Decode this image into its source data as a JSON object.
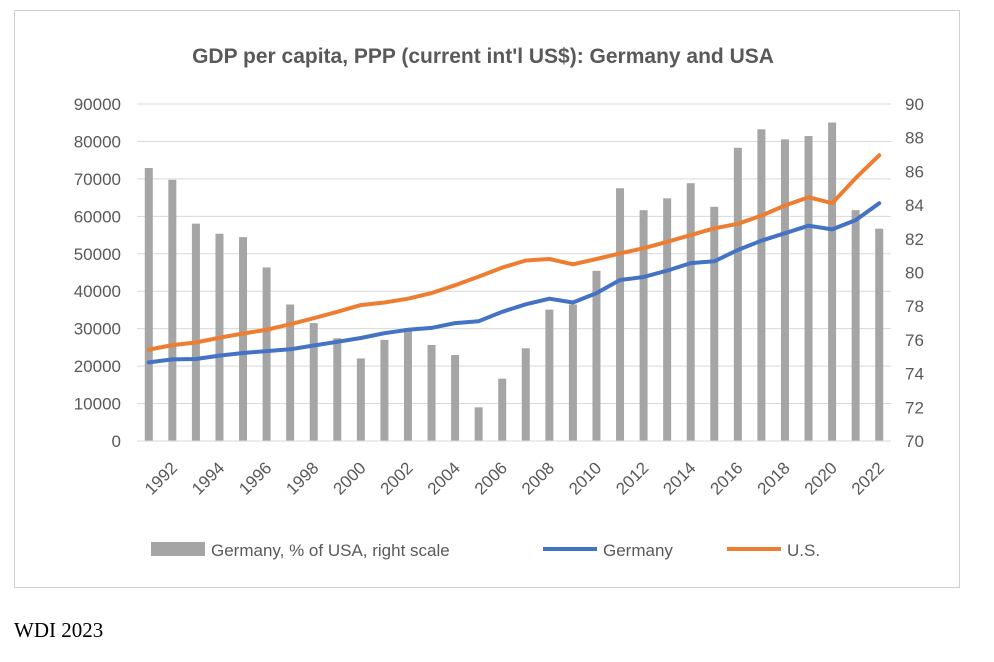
{
  "source_note": "WDI 2023",
  "chart_data": {
    "type": "bar+line",
    "title": "GDP per capita, PPP (current int'l US$): Germany and USA",
    "x": [
      1991,
      1992,
      1993,
      1994,
      1995,
      1996,
      1997,
      1998,
      1999,
      2000,
      2001,
      2002,
      2003,
      2004,
      2005,
      2006,
      2007,
      2008,
      2009,
      2010,
      2011,
      2012,
      2013,
      2014,
      2015,
      2016,
      2017,
      2018,
      2019,
      2020,
      2021,
      2022
    ],
    "x_tick_labels": [
      "1992",
      "1994",
      "1996",
      "1998",
      "2000",
      "2002",
      "2004",
      "2006",
      "2008",
      "2010",
      "2012",
      "2014",
      "2016",
      "2018",
      "2020",
      "2022"
    ],
    "y_left": {
      "ylim": [
        0,
        90000
      ],
      "ticks": [
        "0",
        "10000",
        "20000",
        "30000",
        "40000",
        "50000",
        "60000",
        "70000",
        "80000",
        "90000"
      ]
    },
    "y_right": {
      "ylim": [
        70,
        90
      ],
      "ticks": [
        "70",
        "72",
        "74",
        "76",
        "78",
        "80",
        "82",
        "84",
        "86",
        "88",
        "90"
      ]
    },
    "legend_position": "bottom",
    "series": [
      {
        "name": "Germany, % of USA, right scale",
        "kind": "bar",
        "axis": "right",
        "color": "#a5a5a5",
        "values": [
          86.2,
          85.5,
          82.9,
          82.3,
          82.1,
          80.3,
          78.1,
          77.0,
          76.1,
          74.9,
          76.0,
          76.7,
          75.7,
          75.1,
          72.0,
          73.7,
          75.5,
          77.8,
          78.1,
          80.1,
          85.0,
          83.7,
          84.4,
          85.3,
          83.9,
          87.4,
          88.5,
          87.9,
          88.1,
          88.9,
          83.7,
          82.6
        ]
      },
      {
        "name": "Germany",
        "kind": "line",
        "axis": "left",
        "color": "#4472c4",
        "values": [
          21000,
          21800,
          21900,
          22800,
          23500,
          24000,
          24500,
          25500,
          26500,
          27500,
          28800,
          29700,
          30200,
          31500,
          32000,
          34500,
          36500,
          38000,
          37000,
          39500,
          43000,
          43800,
          45500,
          47500,
          48000,
          51000,
          53500,
          55500,
          57500,
          56500,
          59000,
          63500
        ]
      },
      {
        "name": "U.S.",
        "kind": "line",
        "axis": "left",
        "color": "#ed7d31",
        "values": [
          24400,
          25600,
          26300,
          27600,
          28700,
          29700,
          31200,
          32800,
          34500,
          36300,
          37000,
          38000,
          39500,
          41600,
          43900,
          46300,
          48200,
          48600,
          47200,
          48600,
          50100,
          51500,
          53200,
          55000,
          56800,
          58000,
          60200,
          62900,
          65100,
          63500,
          70200,
          76300
        ]
      }
    ]
  }
}
